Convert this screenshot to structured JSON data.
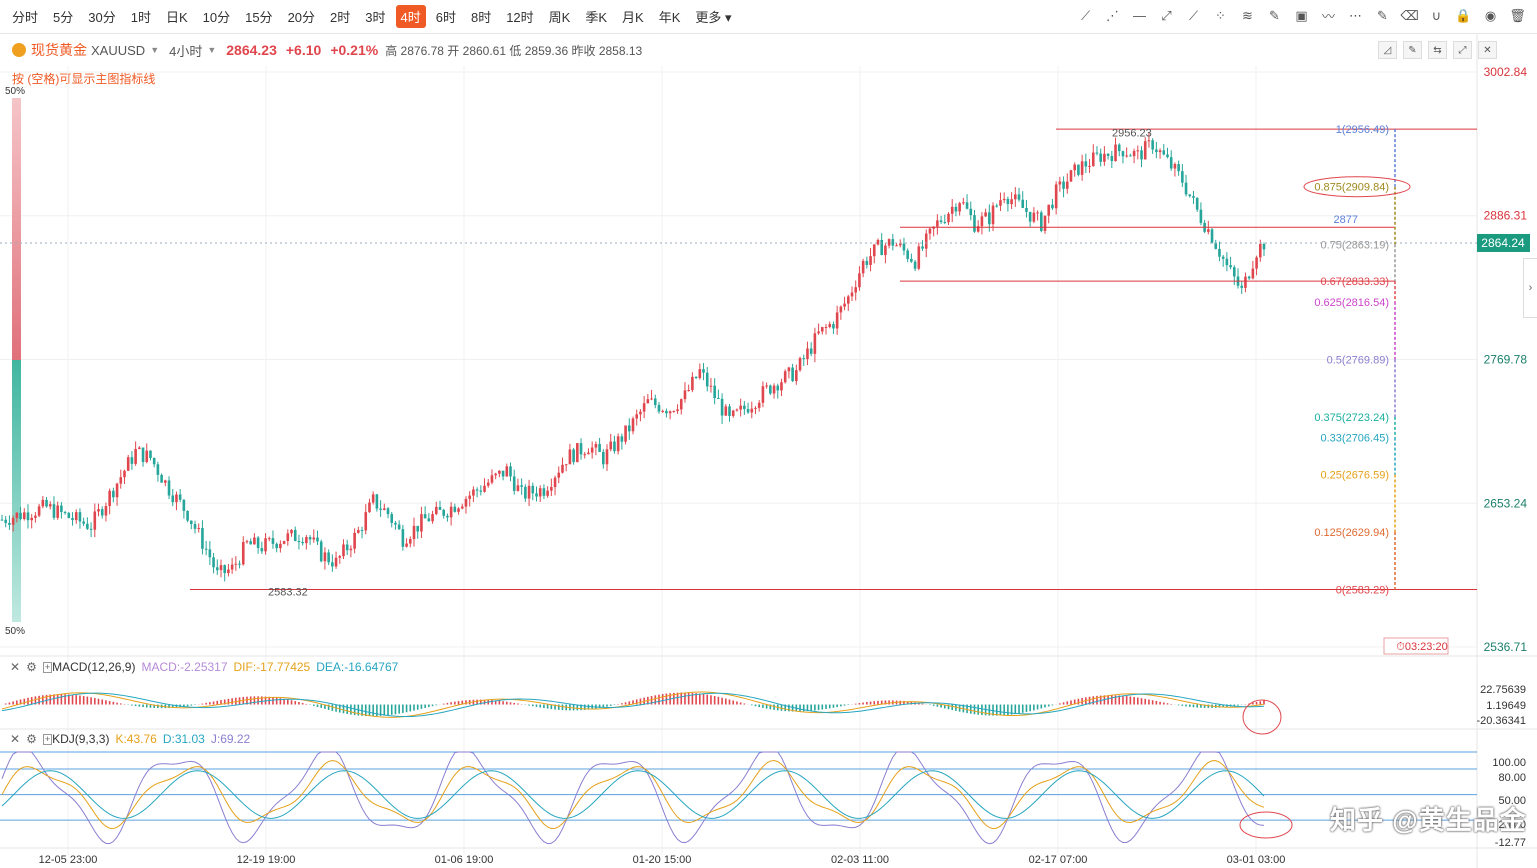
{
  "periods": [
    "分时",
    "5分",
    "30分",
    "1时",
    "日K",
    "10分",
    "15分",
    "20分",
    "2时",
    "3时",
    "4时",
    "6时",
    "8时",
    "12时",
    "周K",
    "季K",
    "月K",
    "年K",
    "更多"
  ],
  "active_period": "4时",
  "toolbar_icons": [
    "trend-line-icon",
    "ray-line-icon",
    "horizontal-line-icon",
    "segment-icon",
    "parallel-line-icon",
    "fibonacci-icon",
    "fan-icon",
    "brush-icon",
    "image-icon",
    "wave-icon",
    "more-dots-icon",
    "note-icon",
    "eraser-icon",
    "magnet-icon",
    "lock-icon",
    "eye-icon",
    "trash-icon"
  ],
  "symbol": {
    "name": "现货黄金",
    "code": "XAUUSD",
    "interval": "4小时",
    "price": "2864.23",
    "change": "+6.10",
    "change_pct": "+0.21%",
    "high_label": "高",
    "high": "2876.78",
    "open_label": "开",
    "open": "2860.61",
    "low_label": "低",
    "low": "2859.36",
    "prev_label": "昨收",
    "prev": "2858.13"
  },
  "hint": "按 (空格)可显示主图指标线",
  "pct_top": "50%",
  "pct_bottom": "50%",
  "price_axis": [
    "3002.84",
    "2886.31",
    "2769.78",
    "2653.24",
    "2536.71"
  ],
  "current_price_tag": "2864.24",
  "countdown": "03:23:20",
  "colors": {
    "up": "#e0464d",
    "down": "#26a69a",
    "accent": "#f05a24",
    "line": "#d9343b",
    "current": "#1a9a7f"
  },
  "fib_levels": [
    {
      "label": "1(2956.49)",
      "color": "#5b7fd6"
    },
    {
      "label": "0.875(2909.84)",
      "color": "#a08a1e"
    },
    {
      "label": "0.75(2863.19)",
      "color": "#999999"
    },
    {
      "label": "0.67(2833.33)",
      "color": "#e0464d"
    },
    {
      "label": "0.625(2816.54)",
      "color": "#cc44cc"
    },
    {
      "label": "0.5(2769.89)",
      "color": "#8a7fd0"
    },
    {
      "label": "0.375(2723.24)",
      "color": "#1ab0a0"
    },
    {
      "label": "0.33(2706.45)",
      "color": "#26a6c0"
    },
    {
      "label": "0.25(2676.59)",
      "color": "#e5a11a"
    },
    {
      "label": "0.125(2629.94)",
      "color": "#e06a30"
    },
    {
      "label": "0(2583.29)",
      "color": "#e0464d"
    }
  ],
  "annotations": {
    "high_mark": "2956.23",
    "low_mark": "2583.32",
    "level_2877": "2877"
  },
  "macd": {
    "label": "MACD(12,26,9)",
    "macd": "MACD:-2.25317",
    "dif": "DIF:-17.77425",
    "dea": "DEA:-16.64767",
    "axis": [
      "22.75639",
      "1.19649",
      "-20.36341"
    ]
  },
  "kdj": {
    "label": "KDJ(9,3,3)",
    "k": "K:43.76",
    "d": "D:31.03",
    "j": "J:69.22",
    "axis": [
      "100.00",
      "80.00",
      "50.00",
      "20.00",
      "-12.77"
    ]
  },
  "time_axis": [
    "12-05 23:00",
    "12-19 19:00",
    "01-06 19:00",
    "01-20 15:00",
    "02-03 11:00",
    "02-17 07:00",
    "03-01 03:00"
  ],
  "watermark": "知乎 @黄生品金",
  "chart_data": {
    "type": "candlestick",
    "symbol": "XAUUSD",
    "interval": "4小时",
    "y_range": [
      2536.71,
      3002.84
    ],
    "x_ticks": [
      "12-05 23:00",
      "12-19 19:00",
      "01-06 19:00",
      "01-20 15:00",
      "02-03 11:00",
      "02-17 07:00",
      "03-01 03:00"
    ],
    "close_path": [
      [
        0,
        2640
      ],
      [
        6,
        2645
      ],
      [
        12,
        2650
      ],
      [
        18,
        2642
      ],
      [
        24,
        2635
      ],
      [
        30,
        2665
      ],
      [
        36,
        2695
      ],
      [
        40,
        2690
      ],
      [
        45,
        2665
      ],
      [
        50,
        2645
      ],
      [
        56,
        2610
      ],
      [
        58,
        2595
      ],
      [
        62,
        2600
      ],
      [
        66,
        2620
      ],
      [
        70,
        2618
      ],
      [
        76,
        2625
      ],
      [
        82,
        2628
      ],
      [
        86,
        2612
      ],
      [
        90,
        2605
      ],
      [
        96,
        2630
      ],
      [
        100,
        2655
      ],
      [
        104,
        2645
      ],
      [
        108,
        2625
      ],
      [
        114,
        2640
      ],
      [
        120,
        2648
      ],
      [
        126,
        2660
      ],
      [
        132,
        2672
      ],
      [
        136,
        2680
      ],
      [
        140,
        2660
      ],
      [
        146,
        2665
      ],
      [
        152,
        2690
      ],
      [
        158,
        2700
      ],
      [
        162,
        2690
      ],
      [
        168,
        2710
      ],
      [
        174,
        2735
      ],
      [
        180,
        2730
      ],
      [
        184,
        2740
      ],
      [
        188,
        2760
      ],
      [
        192,
        2740
      ],
      [
        196,
        2720
      ],
      [
        202,
        2735
      ],
      [
        208,
        2750
      ],
      [
        214,
        2760
      ],
      [
        220,
        2790
      ],
      [
        224,
        2800
      ],
      [
        228,
        2820
      ],
      [
        232,
        2848
      ],
      [
        236,
        2860
      ],
      [
        240,
        2865
      ],
      [
        246,
        2850
      ],
      [
        252,
        2880
      ],
      [
        258,
        2900
      ],
      [
        262,
        2880
      ],
      [
        266,
        2885
      ],
      [
        270,
        2905
      ],
      [
        276,
        2890
      ],
      [
        280,
        2880
      ],
      [
        284,
        2905
      ],
      [
        290,
        2925
      ],
      [
        296,
        2935
      ],
      [
        302,
        2940
      ],
      [
        306,
        2935
      ],
      [
        310,
        2945
      ],
      [
        314,
        2930
      ],
      [
        318,
        2915
      ],
      [
        322,
        2890
      ],
      [
        326,
        2870
      ],
      [
        330,
        2845
      ],
      [
        334,
        2825
      ],
      [
        338,
        2858
      ],
      [
        340,
        2864.23
      ]
    ],
    "horizontal_lines": [
      2956.49,
      2877,
      2833.33,
      2583.29
    ],
    "marks": {
      "high": 2956.23,
      "low": 2583.32
    },
    "fibonacci": [
      {
        "ratio": 1,
        "value": 2956.49
      },
      {
        "ratio": 0.875,
        "value": 2909.84
      },
      {
        "ratio": 0.75,
        "value": 2863.19
      },
      {
        "ratio": 0.67,
        "value": 2833.33
      },
      {
        "ratio": 0.625,
        "value": 2816.54
      },
      {
        "ratio": 0.5,
        "value": 2769.89
      },
      {
        "ratio": 0.375,
        "value": 2723.24
      },
      {
        "ratio": 0.33,
        "value": 2706.45
      },
      {
        "ratio": 0.25,
        "value": 2676.59
      },
      {
        "ratio": 0.125,
        "value": 2629.94
      },
      {
        "ratio": 0,
        "value": 2583.29
      }
    ],
    "macd_latest": {
      "macd": -2.25317,
      "dif": -17.77425,
      "dea": -16.64767
    },
    "macd_range": [
      -20.36341,
      22.75639
    ],
    "kdj_latest": {
      "k": 43.76,
      "d": 31.03,
      "j": 69.22
    },
    "kdj_range": [
      -12.77,
      100
    ]
  }
}
